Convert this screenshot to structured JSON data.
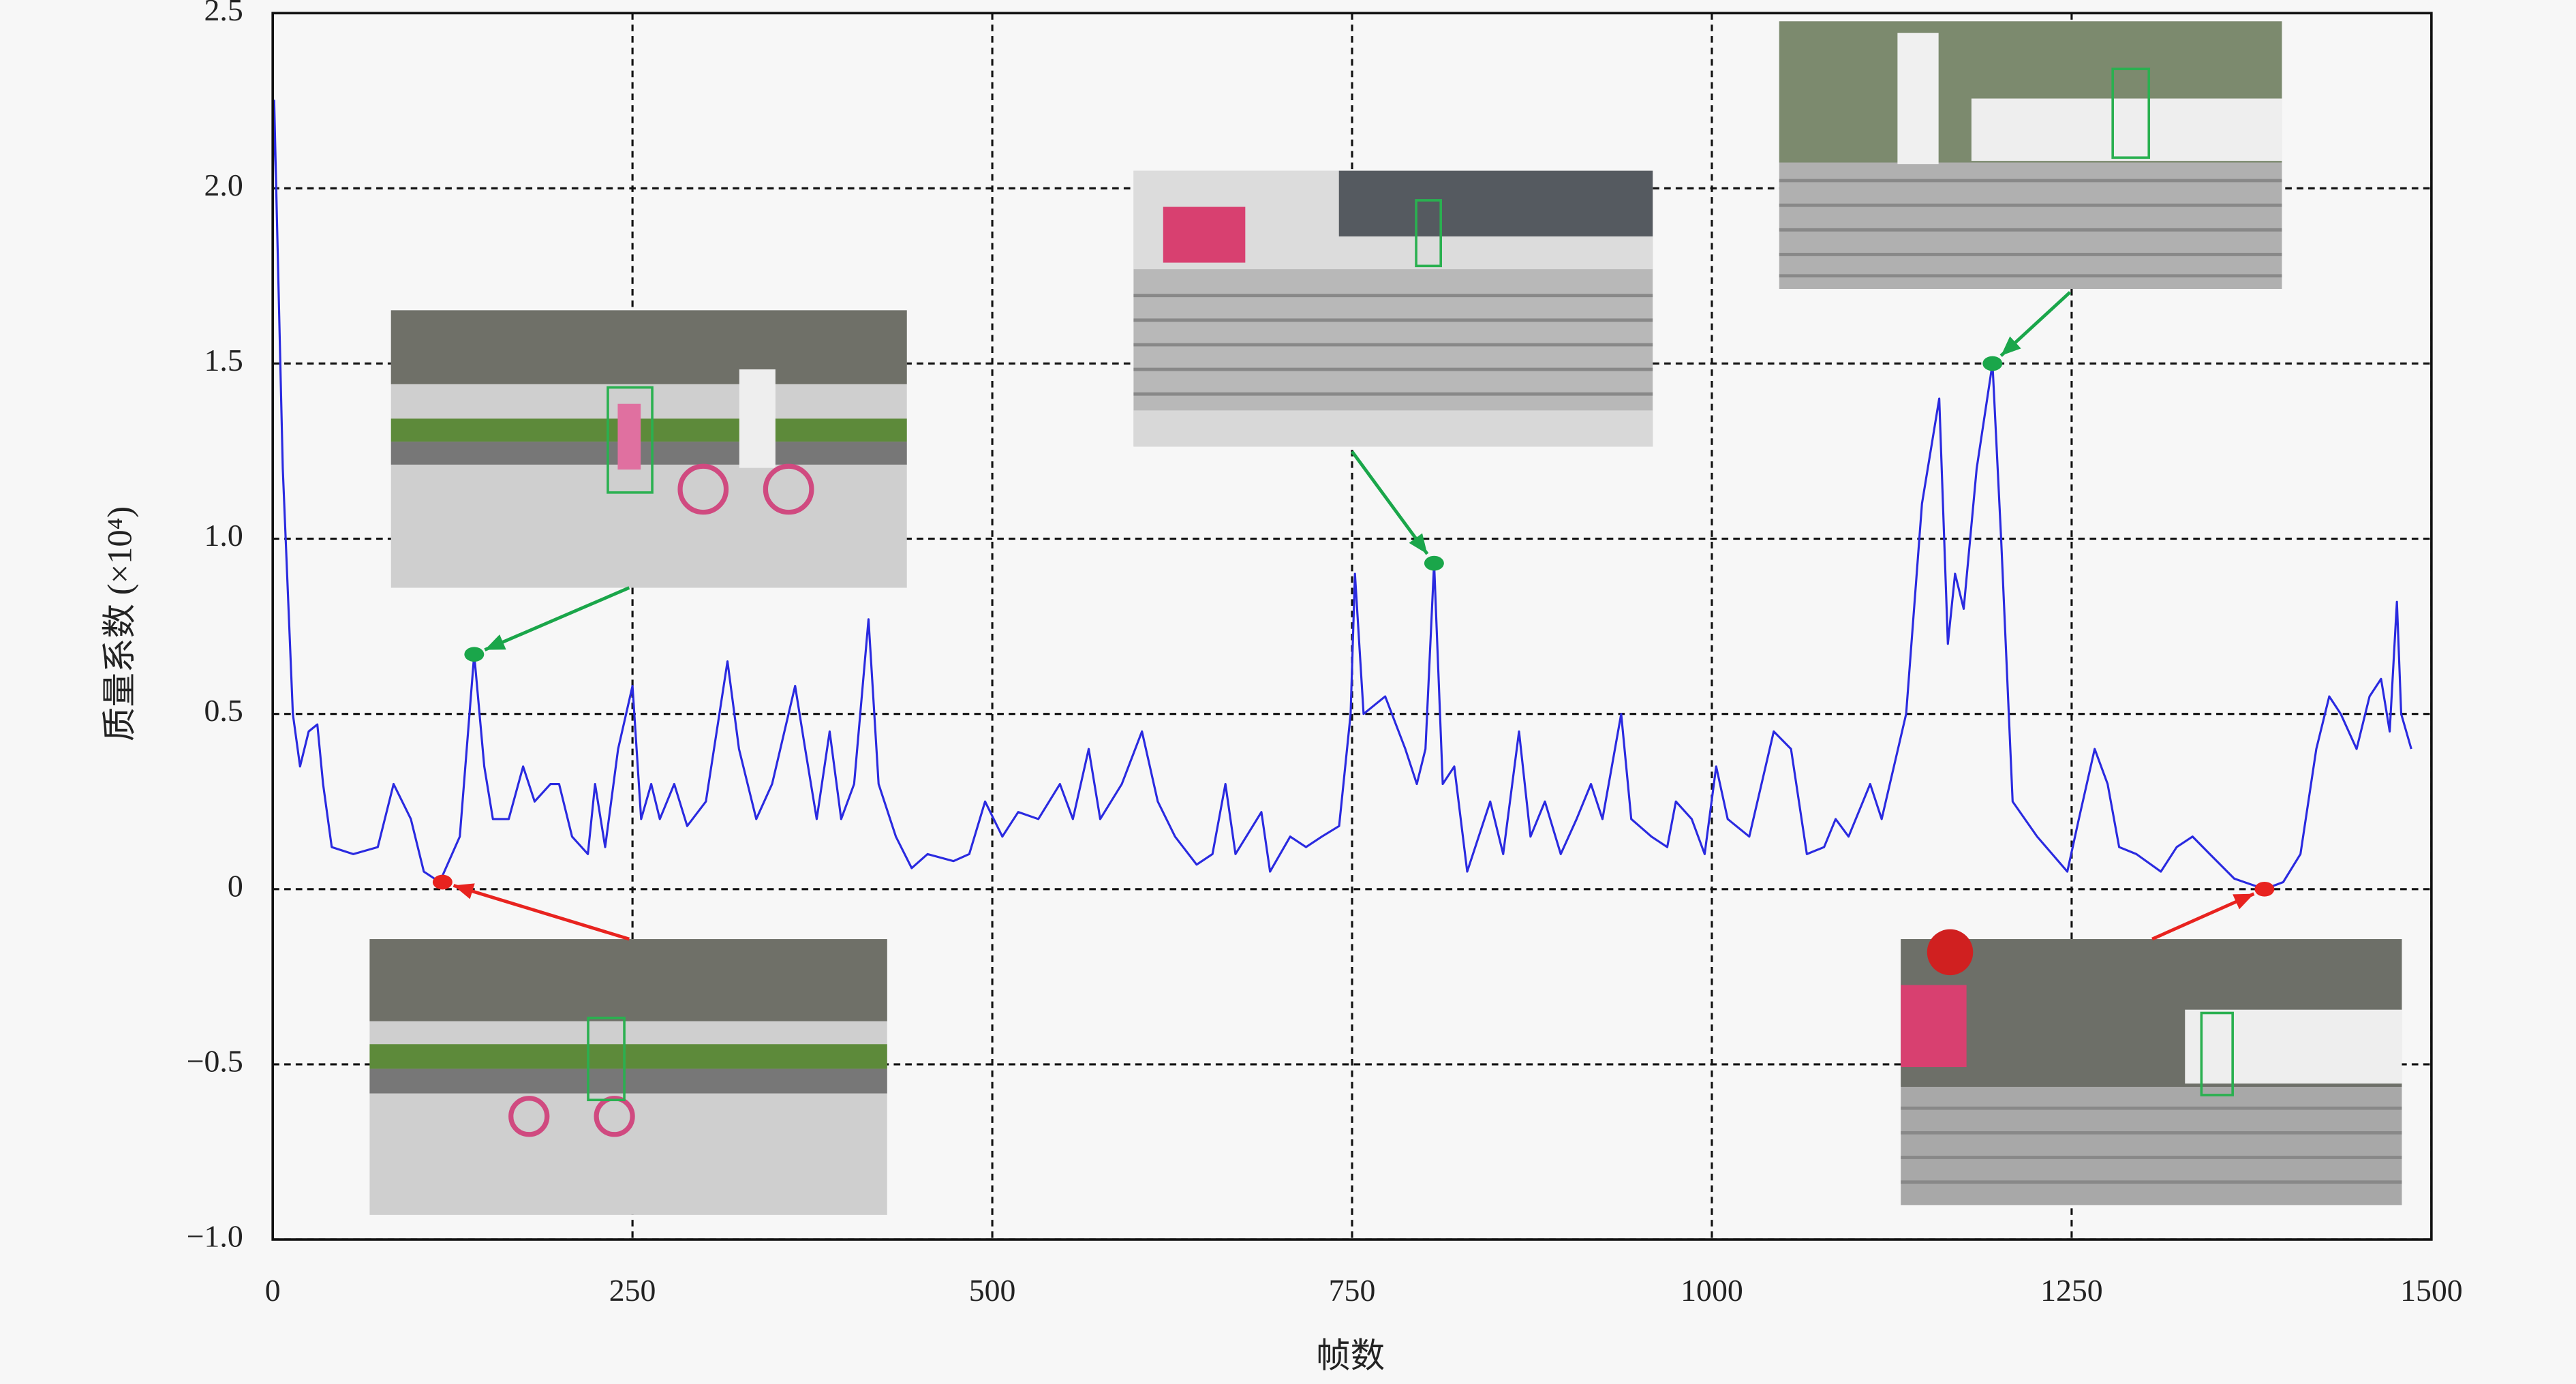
{
  "chart_data": {
    "type": "line",
    "xlabel": "帧数",
    "ylabel": "质量系数 (×10⁴)",
    "x": [
      0,
      1,
      7,
      14,
      19,
      25,
      31,
      35,
      41,
      56,
      73,
      84,
      96,
      105,
      116,
      130,
      140,
      147,
      153,
      164,
      174,
      182,
      193,
      199,
      208,
      219,
      224,
      231,
      240,
      250,
      256,
      263,
      269,
      279,
      288,
      301,
      316,
      324,
      336,
      347,
      363,
      370,
      378,
      387,
      395,
      404,
      414,
      421,
      433,
      444,
      455,
      473,
      484,
      495,
      507,
      518,
      532,
      547,
      556,
      567,
      575,
      590,
      604,
      615,
      627,
      642,
      653,
      662,
      669,
      687,
      693,
      707,
      718,
      729,
      741,
      749,
      752,
      758,
      773,
      787,
      795,
      801,
      807,
      813,
      821,
      830,
      838,
      846,
      855,
      866,
      874,
      884,
      895,
      906,
      916,
      924,
      937,
      944,
      958,
      969,
      975,
      986,
      995,
      1003,
      1011,
      1026,
      1043,
      1055,
      1066,
      1078,
      1086,
      1095,
      1110,
      1118,
      1135,
      1146,
      1158,
      1164,
      1169,
      1175,
      1184,
      1195,
      1201,
      1209,
      1226,
      1247,
      1255,
      1266,
      1275,
      1283,
      1295,
      1312,
      1323,
      1334,
      1346,
      1363,
      1384,
      1397,
      1409,
      1420,
      1429,
      1437,
      1448,
      1457,
      1465,
      1471,
      1476,
      1479,
      1486
    ],
    "series": [
      {
        "color": "#2a2ae0",
        "values": [
          2.0,
          2.25,
          1.2,
          0.5,
          0.35,
          0.45,
          0.47,
          0.3,
          0.12,
          0.1,
          0.12,
          0.3,
          0.2,
          0.05,
          0.02,
          0.15,
          0.67,
          0.35,
          0.2,
          0.2,
          0.35,
          0.25,
          0.3,
          0.3,
          0.15,
          0.1,
          0.3,
          0.12,
          0.4,
          0.58,
          0.2,
          0.3,
          0.2,
          0.3,
          0.18,
          0.25,
          0.65,
          0.4,
          0.2,
          0.3,
          0.58,
          0.4,
          0.2,
          0.45,
          0.2,
          0.3,
          0.77,
          0.3,
          0.15,
          0.06,
          0.1,
          0.08,
          0.1,
          0.25,
          0.15,
          0.22,
          0.2,
          0.3,
          0.2,
          0.4,
          0.2,
          0.3,
          0.45,
          0.25,
          0.15,
          0.07,
          0.1,
          0.3,
          0.1,
          0.22,
          0.05,
          0.15,
          0.12,
          0.15,
          0.18,
          0.5,
          0.9,
          0.5,
          0.55,
          0.4,
          0.3,
          0.4,
          0.93,
          0.3,
          0.35,
          0.05,
          0.15,
          0.25,
          0.1,
          0.45,
          0.15,
          0.25,
          0.1,
          0.2,
          0.3,
          0.2,
          0.5,
          0.2,
          0.15,
          0.12,
          0.25,
          0.2,
          0.1,
          0.35,
          0.2,
          0.15,
          0.45,
          0.4,
          0.1,
          0.12,
          0.2,
          0.15,
          0.3,
          0.2,
          0.5,
          1.1,
          1.4,
          0.7,
          0.9,
          0.8,
          1.2,
          1.5,
          1.0,
          0.25,
          0.15,
          0.05,
          0.2,
          0.4,
          0.3,
          0.12,
          0.1,
          0.05,
          0.12,
          0.15,
          0.1,
          0.03,
          0,
          0.02,
          0.1,
          0.4,
          0.55,
          0.5,
          0.4,
          0.55,
          0.6,
          0.45,
          0.82,
          0.5,
          0.4
        ]
      }
    ],
    "markers": [
      {
        "x": 118,
        "y": 0.02,
        "color": "#e8231f"
      },
      {
        "x": 140,
        "y": 0.67,
        "color": "#1aa64a"
      },
      {
        "x": 807,
        "y": 0.93,
        "color": "#1aa64a"
      },
      {
        "x": 1195,
        "y": 1.5,
        "color": "#1aa64a"
      },
      {
        "x": 1384,
        "y": 0,
        "color": "#e8231f"
      }
    ],
    "xlim": [
      0,
      1500
    ],
    "xticks": [
      0,
      250,
      500,
      750,
      1000,
      1250,
      1500
    ],
    "ylim": [
      -1,
      2.5
    ],
    "yticks": [
      {
        "value": -1,
        "label": "−1.0"
      },
      {
        "value": -0.5,
        "label": "−0.5"
      },
      0,
      0.5,
      {
        "value": 1,
        "label": "1.0"
      },
      1.5,
      {
        "value": 2,
        "label": "2.0"
      },
      2.5
    ],
    "grid": true
  }
}
